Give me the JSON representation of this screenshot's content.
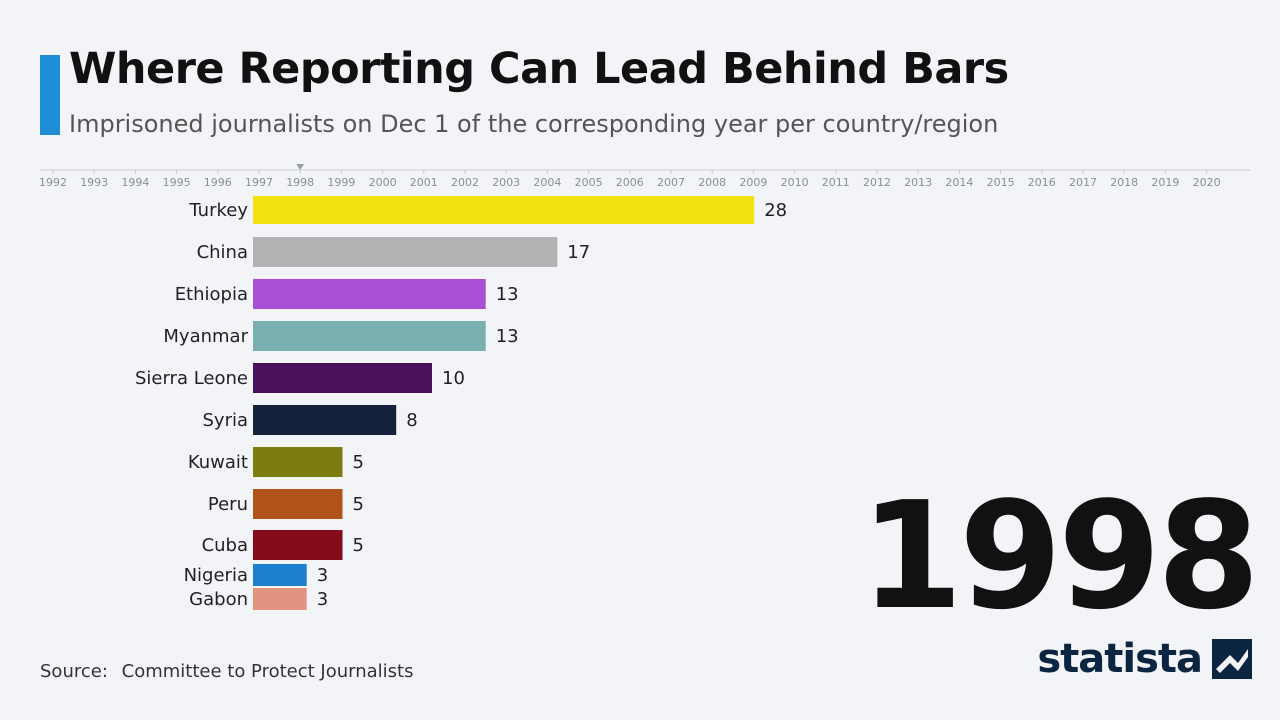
{
  "header": {
    "title": "Where Reporting Can Lead Behind Bars",
    "subtitle": "Imprisoned journalists on Dec 1 of the corresponding year per country/region"
  },
  "timeline": {
    "years": [
      "1992",
      "1993",
      "1994",
      "1995",
      "1996",
      "1997",
      "1998",
      "1999",
      "2000",
      "2001",
      "2002",
      "2003",
      "2004",
      "2005",
      "2006",
      "2007",
      "2008",
      "2009",
      "2010",
      "2011",
      "2012",
      "2013",
      "2014",
      "2015",
      "2016",
      "2017",
      "2018",
      "2019",
      "2020"
    ],
    "current": "1998"
  },
  "current_year": "1998",
  "footer": {
    "source_label": "Source:",
    "source_text": "Committee to Protect Journalists",
    "brand": "statista"
  },
  "colors": {
    "accent": "#1e8fd6",
    "brand": "#0b2540"
  },
  "chart_data": {
    "type": "bar",
    "orientation": "horizontal",
    "categories": [
      "Turkey",
      "China",
      "Ethiopia",
      "Myanmar",
      "Sierra Leone",
      "Syria",
      "Kuwait",
      "Peru",
      "Cuba",
      "Nigeria",
      "Gabon"
    ],
    "values": [
      28,
      17,
      13,
      13,
      10,
      8,
      5,
      5,
      5,
      3,
      3
    ],
    "colors": [
      "#f2e20f",
      "#b3b3b3",
      "#a94fd3",
      "#7aafb0",
      "#4a125c",
      "#14213a",
      "#7c7d0f",
      "#b2541a",
      "#850c1b",
      "#1c7fd0",
      "#e0937f"
    ],
    "title": "Where Reporting Can Lead Behind Bars",
    "xlabel": "",
    "ylabel": "",
    "grid": false,
    "data_labels": true
  }
}
